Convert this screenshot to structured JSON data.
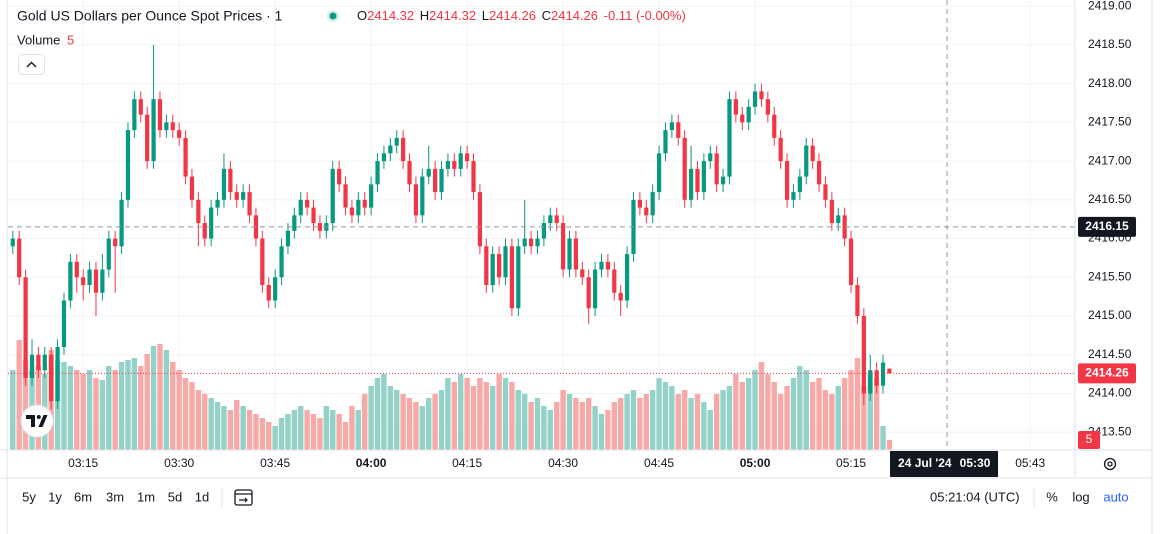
{
  "chart_data": {
    "type": "candlestick",
    "title": "Gold US Dollars per Ounce Spot Prices · 1",
    "legend": {
      "open_label": "O",
      "open": 2414.32,
      "high_label": "H",
      "high": 2414.32,
      "low_label": "L",
      "low": 2414.26,
      "close_label": "C",
      "close": 2414.26,
      "change": -0.11,
      "change_pct": "(-0.00%)"
    },
    "volume_label": "Volume",
    "volume_value": 5,
    "x": [
      "03:04",
      "03:05",
      "03:06",
      "03:07",
      "03:08",
      "03:09",
      "03:10",
      "03:11",
      "03:12",
      "03:13",
      "03:14",
      "03:15",
      "03:16",
      "03:17",
      "03:18",
      "03:19",
      "03:20",
      "03:21",
      "03:22",
      "03:23",
      "03:24",
      "03:25",
      "03:26",
      "03:27",
      "03:28",
      "03:29",
      "03:30",
      "03:31",
      "03:32",
      "03:33",
      "03:34",
      "03:35",
      "03:36",
      "03:37",
      "03:38",
      "03:39",
      "03:40",
      "03:41",
      "03:42",
      "03:43",
      "03:44",
      "03:45",
      "03:46",
      "03:47",
      "03:48",
      "03:49",
      "03:50",
      "03:51",
      "03:52",
      "03:53",
      "03:54",
      "03:55",
      "03:56",
      "03:57",
      "03:58",
      "03:59",
      "04:00",
      "04:01",
      "04:02",
      "04:03",
      "04:04",
      "04:05",
      "04:06",
      "04:07",
      "04:08",
      "04:09",
      "04:10",
      "04:11",
      "04:12",
      "04:13",
      "04:14",
      "04:15",
      "04:16",
      "04:17",
      "04:18",
      "04:19",
      "04:20",
      "04:21",
      "04:22",
      "04:23",
      "04:24",
      "04:25",
      "04:26",
      "04:27",
      "04:28",
      "04:29",
      "04:30",
      "04:31",
      "04:32",
      "04:33",
      "04:34",
      "04:35",
      "04:36",
      "04:37",
      "04:38",
      "04:39",
      "04:40",
      "04:41",
      "04:42",
      "04:43",
      "04:44",
      "04:45",
      "04:46",
      "04:47",
      "04:48",
      "04:49",
      "04:50",
      "04:51",
      "04:52",
      "04:53",
      "04:54",
      "04:55",
      "04:56",
      "04:57",
      "04:58",
      "04:59",
      "05:00",
      "05:01",
      "05:02",
      "05:03",
      "05:04",
      "05:05",
      "05:06",
      "05:07",
      "05:08",
      "05:09",
      "05:10",
      "05:11",
      "05:12",
      "05:13",
      "05:14",
      "05:15",
      "05:16",
      "05:17",
      "05:18",
      "05:19",
      "05:20",
      "05:21"
    ],
    "candles": [
      [
        2415.9,
        2416.1,
        2415.8,
        2416.0
      ],
      [
        2416.0,
        2416.1,
        2415.4,
        2415.5
      ],
      [
        2415.5,
        2415.6,
        2414.1,
        2414.2
      ],
      [
        2414.2,
        2414.7,
        2414.1,
        2414.5
      ],
      [
        2414.5,
        2414.6,
        2414.2,
        2414.3
      ],
      [
        2414.3,
        2414.6,
        2414.2,
        2414.5
      ],
      [
        2414.5,
        2414.6,
        2413.8,
        2413.9
      ],
      [
        2413.9,
        2414.7,
        2413.8,
        2414.6
      ],
      [
        2414.6,
        2415.3,
        2414.5,
        2415.2
      ],
      [
        2415.2,
        2415.8,
        2415.1,
        2415.7
      ],
      [
        2415.7,
        2415.8,
        2415.3,
        2415.5
      ],
      [
        2415.5,
        2415.6,
        2415.2,
        2415.4
      ],
      [
        2415.4,
        2415.7,
        2415.3,
        2415.6
      ],
      [
        2415.6,
        2415.7,
        2415.0,
        2415.3
      ],
      [
        2415.3,
        2415.8,
        2415.2,
        2415.6
      ],
      [
        2415.6,
        2416.1,
        2415.5,
        2416.0
      ],
      [
        2416.0,
        2416.1,
        2415.3,
        2415.9
      ],
      [
        2415.9,
        2416.6,
        2415.8,
        2416.5
      ],
      [
        2416.5,
        2417.5,
        2416.4,
        2417.4
      ],
      [
        2417.4,
        2417.9,
        2417.3,
        2417.8
      ],
      [
        2417.8,
        2417.9,
        2417.5,
        2417.6
      ],
      [
        2417.6,
        2417.7,
        2416.9,
        2417.0
      ],
      [
        2417.0,
        2418.5,
        2416.9,
        2417.8
      ],
      [
        2417.8,
        2417.9,
        2417.3,
        2417.4
      ],
      [
        2417.4,
        2417.6,
        2417.3,
        2417.5
      ],
      [
        2417.5,
        2417.6,
        2417.3,
        2417.4
      ],
      [
        2417.4,
        2417.5,
        2417.2,
        2417.3
      ],
      [
        2417.3,
        2417.4,
        2416.7,
        2416.8
      ],
      [
        2416.8,
        2416.9,
        2416.4,
        2416.5
      ],
      [
        2416.5,
        2416.6,
        2415.9,
        2416.2
      ],
      [
        2416.2,
        2416.3,
        2415.9,
        2416.0
      ],
      [
        2416.0,
        2416.5,
        2415.9,
        2416.4
      ],
      [
        2416.4,
        2416.6,
        2416.3,
        2416.5
      ],
      [
        2416.5,
        2417.1,
        2416.4,
        2416.9
      ],
      [
        2416.9,
        2417.0,
        2416.5,
        2416.6
      ],
      [
        2416.6,
        2416.7,
        2416.4,
        2416.5
      ],
      [
        2416.5,
        2416.7,
        2416.4,
        2416.6
      ],
      [
        2416.6,
        2416.7,
        2416.2,
        2416.3
      ],
      [
        2416.3,
        2416.4,
        2415.9,
        2416.0
      ],
      [
        2416.0,
        2416.1,
        2415.3,
        2415.4
      ],
      [
        2415.4,
        2415.5,
        2415.1,
        2415.2
      ],
      [
        2415.2,
        2415.6,
        2415.1,
        2415.5
      ],
      [
        2415.5,
        2416.0,
        2415.4,
        2415.9
      ],
      [
        2415.9,
        2416.2,
        2415.8,
        2416.1
      ],
      [
        2416.1,
        2416.4,
        2416.0,
        2416.3
      ],
      [
        2416.3,
        2416.6,
        2416.2,
        2416.5
      ],
      [
        2416.5,
        2416.6,
        2416.3,
        2416.4
      ],
      [
        2416.4,
        2416.5,
        2416.1,
        2416.2
      ],
      [
        2416.2,
        2416.3,
        2416.0,
        2416.1
      ],
      [
        2416.1,
        2416.3,
        2416.0,
        2416.2
      ],
      [
        2416.2,
        2417.0,
        2416.1,
        2416.9
      ],
      [
        2416.9,
        2417.0,
        2416.6,
        2416.7
      ],
      [
        2416.7,
        2416.8,
        2416.3,
        2416.4
      ],
      [
        2416.4,
        2416.5,
        2416.2,
        2416.3
      ],
      [
        2416.3,
        2416.6,
        2416.2,
        2416.5
      ],
      [
        2416.5,
        2416.6,
        2416.3,
        2416.4
      ],
      [
        2416.4,
        2416.8,
        2416.3,
        2416.7
      ],
      [
        2416.7,
        2417.1,
        2416.6,
        2417.0
      ],
      [
        2417.0,
        2417.2,
        2416.9,
        2417.1
      ],
      [
        2417.1,
        2417.3,
        2417.0,
        2417.2
      ],
      [
        2417.2,
        2417.4,
        2417.1,
        2417.3
      ],
      [
        2417.3,
        2417.4,
        2416.9,
        2417.0
      ],
      [
        2417.0,
        2417.1,
        2416.6,
        2416.7
      ],
      [
        2416.7,
        2416.8,
        2416.2,
        2416.3
      ],
      [
        2416.3,
        2416.9,
        2416.2,
        2416.8
      ],
      [
        2416.8,
        2417.2,
        2416.7,
        2416.9
      ],
      [
        2416.9,
        2417.0,
        2416.5,
        2416.6
      ],
      [
        2416.6,
        2417.0,
        2416.5,
        2416.9
      ],
      [
        2416.9,
        2417.1,
        2416.8,
        2417.0
      ],
      [
        2417.0,
        2417.1,
        2416.8,
        2416.9
      ],
      [
        2416.9,
        2417.2,
        2416.8,
        2417.1
      ],
      [
        2417.1,
        2417.2,
        2416.9,
        2417.0
      ],
      [
        2417.0,
        2417.1,
        2416.5,
        2416.6
      ],
      [
        2416.6,
        2416.7,
        2415.8,
        2415.9
      ],
      [
        2415.9,
        2416.0,
        2415.3,
        2415.4
      ],
      [
        2415.4,
        2415.9,
        2415.3,
        2415.8
      ],
      [
        2415.8,
        2415.9,
        2415.4,
        2415.5
      ],
      [
        2415.5,
        2416.0,
        2415.4,
        2415.9
      ],
      [
        2415.9,
        2416.0,
        2415.0,
        2415.1
      ],
      [
        2415.1,
        2416.0,
        2415.0,
        2415.9
      ],
      [
        2415.9,
        2416.5,
        2415.8,
        2416.0
      ],
      [
        2416.0,
        2416.1,
        2415.8,
        2415.9
      ],
      [
        2415.9,
        2416.1,
        2415.8,
        2416.0
      ],
      [
        2416.0,
        2416.3,
        2415.9,
        2416.2
      ],
      [
        2416.2,
        2416.4,
        2416.1,
        2416.3
      ],
      [
        2416.3,
        2416.4,
        2416.1,
        2416.2
      ],
      [
        2416.2,
        2416.3,
        2415.5,
        2415.6
      ],
      [
        2415.6,
        2416.1,
        2415.5,
        2416.0
      ],
      [
        2416.0,
        2416.1,
        2415.5,
        2415.6
      ],
      [
        2415.6,
        2415.7,
        2415.4,
        2415.5
      ],
      [
        2415.5,
        2415.6,
        2414.9,
        2415.1
      ],
      [
        2415.1,
        2415.7,
        2415.0,
        2415.6
      ],
      [
        2415.6,
        2415.8,
        2415.5,
        2415.7
      ],
      [
        2415.7,
        2415.8,
        2415.5,
        2415.6
      ],
      [
        2415.6,
        2415.7,
        2415.2,
        2415.3
      ],
      [
        2415.3,
        2415.4,
        2415.0,
        2415.2
      ],
      [
        2415.2,
        2415.9,
        2415.1,
        2415.8
      ],
      [
        2415.8,
        2416.6,
        2415.7,
        2416.5
      ],
      [
        2416.5,
        2416.6,
        2416.3,
        2416.4
      ],
      [
        2416.4,
        2416.5,
        2416.2,
        2416.3
      ],
      [
        2416.3,
        2416.7,
        2416.2,
        2416.6
      ],
      [
        2416.6,
        2417.2,
        2416.5,
        2417.1
      ],
      [
        2417.1,
        2417.5,
        2417.0,
        2417.4
      ],
      [
        2417.4,
        2417.6,
        2417.3,
        2417.5
      ],
      [
        2417.5,
        2417.6,
        2417.2,
        2417.3
      ],
      [
        2417.3,
        2417.4,
        2416.4,
        2416.5
      ],
      [
        2416.5,
        2417.2,
        2416.4,
        2416.9
      ],
      [
        2416.9,
        2417.0,
        2416.5,
        2416.6
      ],
      [
        2416.6,
        2417.1,
        2416.5,
        2417.0
      ],
      [
        2417.0,
        2417.2,
        2416.9,
        2417.1
      ],
      [
        2417.1,
        2417.2,
        2416.6,
        2416.7
      ],
      [
        2416.7,
        2416.9,
        2416.6,
        2416.8
      ],
      [
        2416.8,
        2417.9,
        2416.7,
        2417.8
      ],
      [
        2417.8,
        2417.9,
        2417.5,
        2417.6
      ],
      [
        2417.6,
        2417.7,
        2417.4,
        2417.5
      ],
      [
        2417.5,
        2417.8,
        2417.4,
        2417.7
      ],
      [
        2417.7,
        2418.0,
        2417.6,
        2417.9
      ],
      [
        2417.9,
        2418.0,
        2417.7,
        2417.8
      ],
      [
        2417.8,
        2417.9,
        2417.5,
        2417.6
      ],
      [
        2417.6,
        2417.7,
        2417.2,
        2417.3
      ],
      [
        2417.3,
        2417.4,
        2416.9,
        2417.0
      ],
      [
        2417.0,
        2417.1,
        2416.4,
        2416.5
      ],
      [
        2416.5,
        2416.7,
        2416.4,
        2416.6
      ],
      [
        2416.6,
        2416.9,
        2416.5,
        2416.8
      ],
      [
        2416.8,
        2417.3,
        2416.7,
        2417.2
      ],
      [
        2417.2,
        2417.3,
        2416.9,
        2417.0
      ],
      [
        2417.0,
        2417.1,
        2416.6,
        2416.7
      ],
      [
        2416.7,
        2416.8,
        2416.4,
        2416.5
      ],
      [
        2416.5,
        2416.6,
        2416.1,
        2416.2
      ],
      [
        2416.2,
        2416.4,
        2416.1,
        2416.3
      ],
      [
        2416.3,
        2416.4,
        2415.9,
        2416.0
      ],
      [
        2416.0,
        2416.1,
        2415.3,
        2415.4
      ],
      [
        2415.4,
        2415.5,
        2414.9,
        2415.0
      ],
      [
        2415.0,
        2415.1,
        2413.85,
        2414.0
      ],
      [
        2414.0,
        2414.5,
        2413.9,
        2414.3
      ],
      [
        2414.3,
        2414.4,
        2414.0,
        2414.1
      ],
      [
        2414.1,
        2414.5,
        2414.0,
        2414.4
      ],
      [
        2414.32,
        2414.32,
        2414.26,
        2414.26
      ]
    ],
    "volume": [
      40,
      55,
      45,
      40,
      42,
      38,
      50,
      45,
      44,
      42,
      40,
      38,
      40,
      36,
      35,
      42,
      40,
      44,
      45,
      46,
      42,
      48,
      52,
      53,
      50,
      44,
      40,
      36,
      34,
      30,
      28,
      26,
      24,
      22,
      20,
      25,
      22,
      20,
      18,
      16,
      14,
      12,
      16,
      18,
      20,
      22,
      20,
      18,
      16,
      22,
      20,
      18,
      14,
      22,
      20,
      28,
      32,
      36,
      38,
      32,
      30,
      28,
      26,
      24,
      22,
      26,
      28,
      30,
      36,
      34,
      38,
      36,
      32,
      36,
      34,
      32,
      38,
      36,
      34,
      30,
      28,
      24,
      26,
      22,
      20,
      24,
      30,
      28,
      26,
      24,
      26,
      22,
      18,
      20,
      24,
      26,
      28,
      30,
      26,
      28,
      30,
      36,
      34,
      32,
      28,
      30,
      26,
      28,
      24,
      20,
      28,
      30,
      32,
      38,
      34,
      36,
      40,
      44,
      38,
      34,
      28,
      32,
      36,
      42,
      40,
      34,
      36,
      30,
      28,
      32,
      36,
      40,
      46,
      32,
      38,
      36,
      12,
      5
    ],
    "up_color": "#089981",
    "down_color": "#f23645",
    "up_volume_color": "#92d2c8",
    "down_volume_color": "#f7a9a7",
    "xlim": [
      "03:02",
      "05:50"
    ],
    "xticks": [
      "03:15",
      "03:30",
      "03:45",
      "04:00",
      "04:15",
      "04:30",
      "04:45",
      "05:00",
      "05:15",
      "05:43"
    ],
    "ylim": [
      2413.27,
      2419.08
    ],
    "yticks": [
      {
        "value": 2413.5,
        "label": "2413.50"
      },
      {
        "value": 2414,
        "label": "2414.00"
      },
      {
        "value": 2414.5,
        "label": "2414.50"
      },
      {
        "value": 2415,
        "label": "2415.00"
      },
      {
        "value": 2415.5,
        "label": "2415.50"
      },
      {
        "value": 2416,
        "label": "2416.00"
      },
      {
        "value": 2416.5,
        "label": "2416.50"
      },
      {
        "value": 2417,
        "label": "2417.00"
      },
      {
        "value": 2417.5,
        "label": "2417.50"
      },
      {
        "value": 2418,
        "label": "2418.00"
      },
      {
        "value": 2418.5,
        "label": "2418.50"
      },
      {
        "value": 2419,
        "label": "2419.00"
      }
    ],
    "grid": true,
    "last_price": 2414.26,
    "crosshair_price": 2416.15,
    "crosshair_date": "24 Jul '24",
    "crosshair_time": "05:30",
    "ranges": [
      "5y",
      "1y",
      "6m",
      "3m",
      "1m",
      "5d",
      "1d"
    ],
    "clock": "05:21:04 (UTC)",
    "scale_buttons": [
      "%",
      "log",
      "auto"
    ]
  }
}
